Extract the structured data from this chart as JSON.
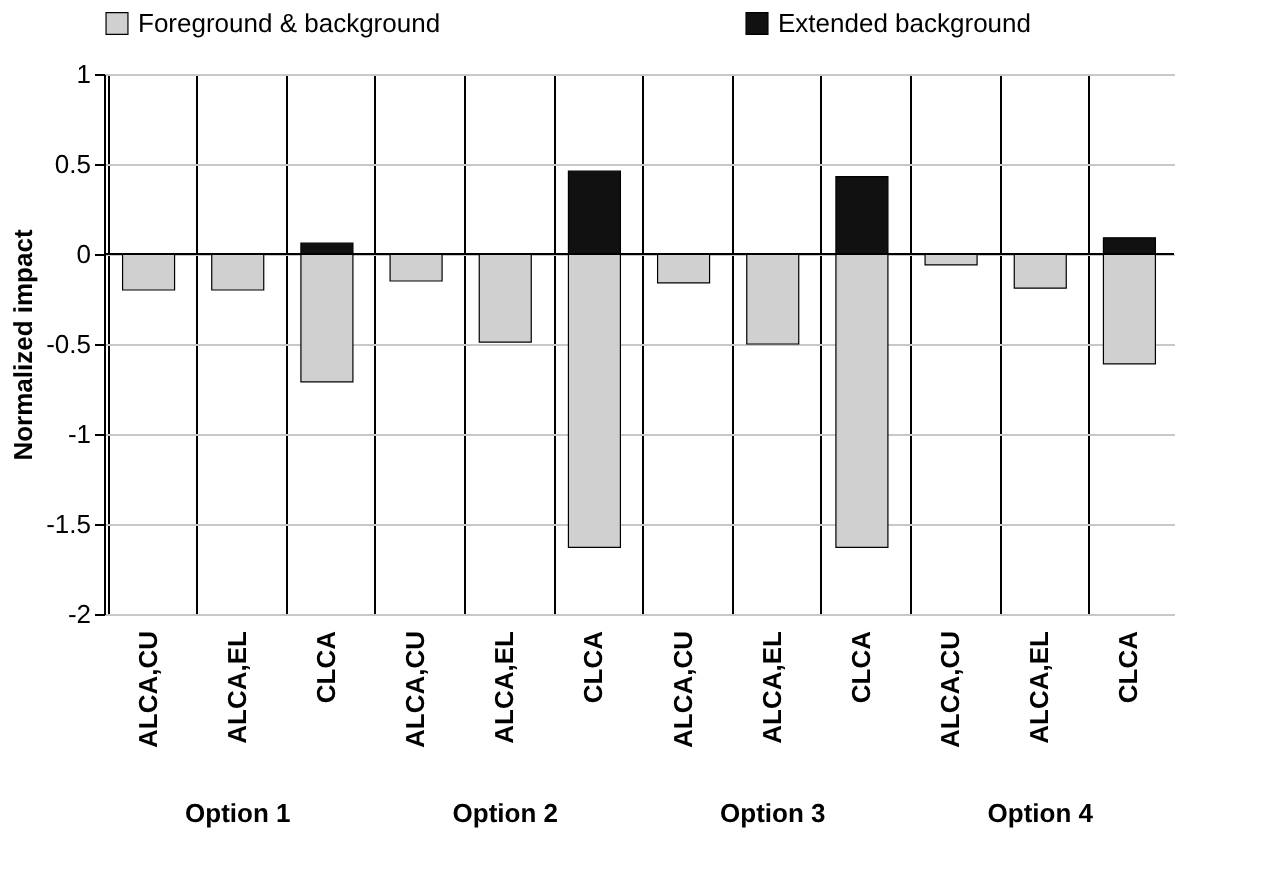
{
  "chart_data": {
    "type": "bar",
    "stacked": true,
    "ylabel": "Normalized impact",
    "categories": [
      "ALCA,CU",
      "ALCA,EL",
      "CLCA",
      "ALCA,CU",
      "ALCA,EL",
      "CLCA",
      "ALCA,CU",
      "ALCA,EL",
      "CLCA",
      "ALCA,CU",
      "ALCA,EL",
      "CLCA"
    ],
    "series": [
      {
        "name": "Foreground & background",
        "color": "#d0d0d0",
        "values": [
          -0.2,
          -0.2,
          -0.71,
          -0.15,
          -0.49,
          -1.63,
          -0.16,
          -0.5,
          -1.63,
          -0.06,
          -0.19,
          -0.61
        ]
      },
      {
        "name": "Extended background",
        "color": "#111111",
        "values": [
          null,
          null,
          0.06,
          null,
          null,
          0.46,
          null,
          null,
          0.43,
          null,
          null,
          0.09
        ]
      }
    ],
    "ylim": [
      -2,
      1
    ],
    "yticks": [
      -2,
      -1.5,
      -1,
      -0.5,
      0,
      0.5,
      1
    ],
    "grid": true,
    "legend": "top",
    "annotations": [
      "Option 1",
      "Option 2",
      "Option 3",
      "Option 4"
    ]
  }
}
